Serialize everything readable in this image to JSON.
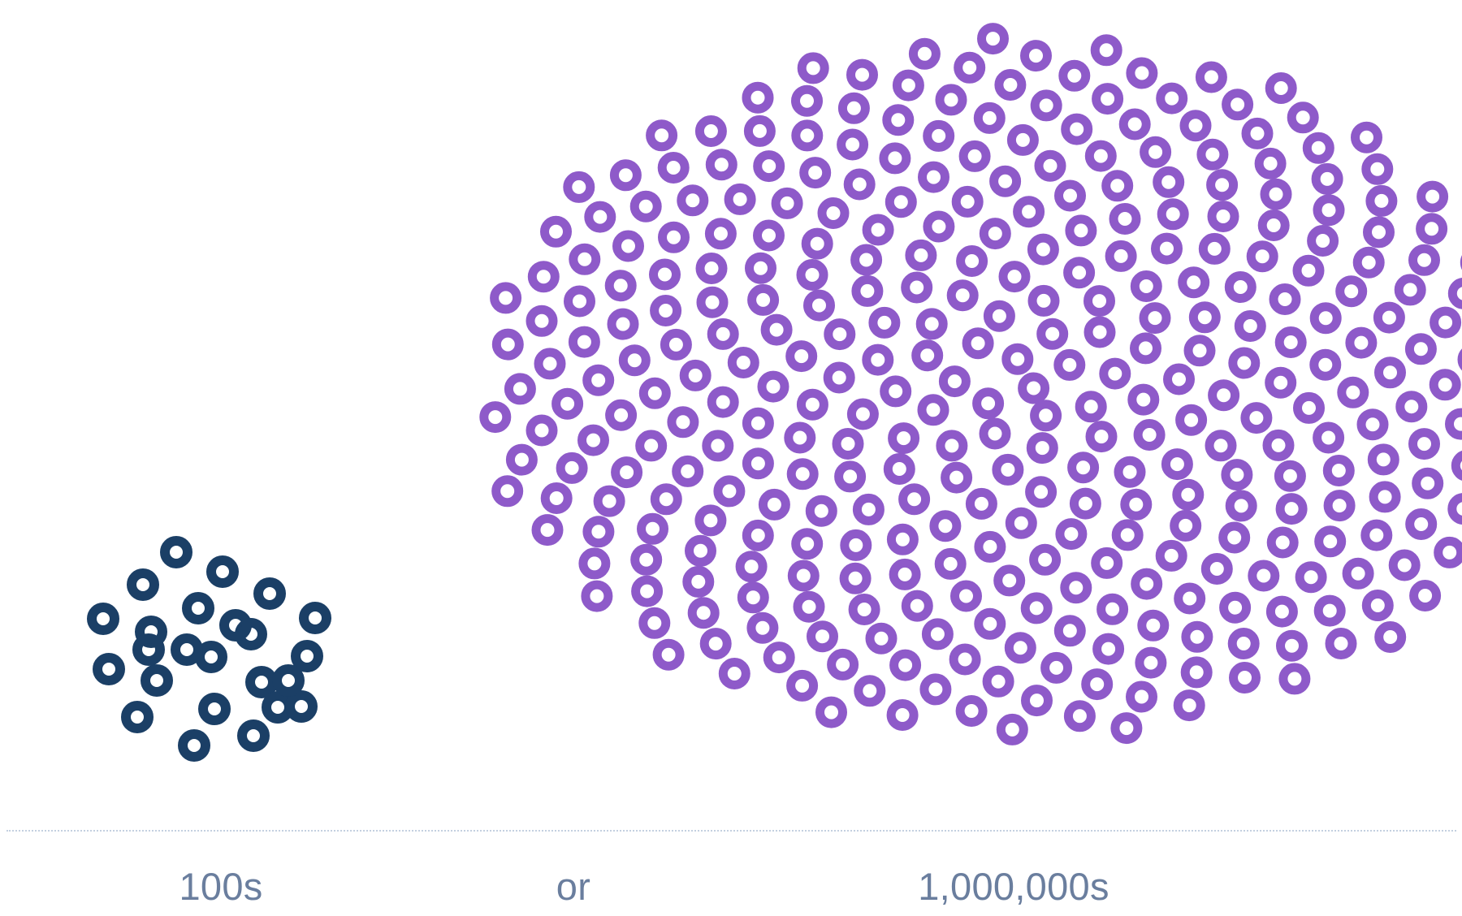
{
  "labels": {
    "small": "100s",
    "connector": "or",
    "large": "1,000,000s"
  },
  "colors": {
    "small_cluster": "#1b3f66",
    "large_cluster": "#8e5ac9",
    "caption": "#6a7e9e",
    "divider": "#c4d0e0"
  },
  "clusters": {
    "small": {
      "count": 24,
      "icon": "ring-icon"
    },
    "large": {
      "count": 360,
      "icon": "ring-icon"
    }
  }
}
